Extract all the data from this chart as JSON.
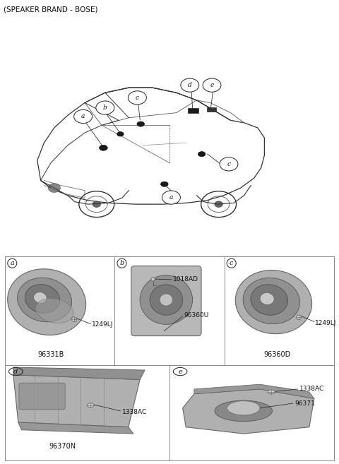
{
  "title": "(SPEAKER BRAND - BOSE)",
  "title_fontsize": 7.5,
  "bg_color": "#ffffff",
  "grid_color": "#888888",
  "label_fontsize": 7,
  "part_fontsize": 6.5,
  "cells": [
    {
      "label": "a",
      "parts": [
        "1249LJ",
        "96331B"
      ],
      "row": 0,
      "col": 0
    },
    {
      "label": "b",
      "parts": [
        "1018AD",
        "96360U"
      ],
      "row": 0,
      "col": 1
    },
    {
      "label": "c",
      "parts": [
        "1249LJ",
        "96360D"
      ],
      "row": 0,
      "col": 2
    },
    {
      "label": "d",
      "parts": [
        "1338AC",
        "96370N"
      ],
      "row": 1,
      "col": 0
    },
    {
      "label": "e",
      "parts": [
        "1338AC",
        "96371"
      ],
      "row": 1,
      "col": 1
    }
  ],
  "car_color": "#333333",
  "speaker_dot_color": "#1a1a1a",
  "label_circle_color": "#333333"
}
